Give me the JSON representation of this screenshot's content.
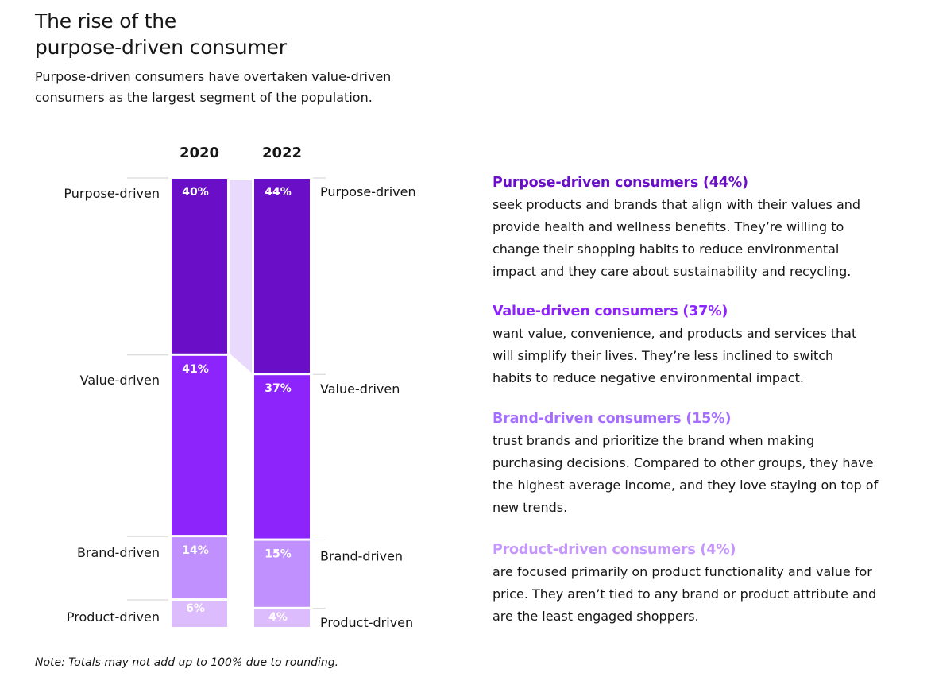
{
  "header": {
    "title_line1": "The rise of the",
    "title_line2": "purpose-driven consumer",
    "subtitle": "Purpose-driven consumers have overtaken value-driven consumers as the largest segment of the population."
  },
  "chart_data": {
    "type": "bar",
    "stacked": true,
    "orientation": "vertical",
    "categories": [
      "2020",
      "2022"
    ],
    "segments_order": "top-to-bottom",
    "series": [
      {
        "name": "Purpose-driven",
        "values": [
          40,
          44
        ],
        "labels": [
          "40%",
          "44%"
        ],
        "color": "#6a0fc7"
      },
      {
        "name": "Value-driven",
        "values": [
          41,
          37
        ],
        "labels": [
          "41%",
          "37%"
        ],
        "color": "#8c24fb"
      },
      {
        "name": "Brand-driven",
        "values": [
          14,
          15
        ],
        "labels": [
          "14%",
          "15%"
        ],
        "color": "#c090fe"
      },
      {
        "name": "Product-driven",
        "values": [
          6,
          4
        ],
        "labels": [
          "6%",
          "4%"
        ],
        "color": "#dcbcfd"
      }
    ],
    "left_labels": [
      "Purpose-driven",
      "Value-driven",
      "Brand-driven",
      "Product-driven"
    ],
    "right_labels": [
      "Purpose-driven",
      "Value-driven",
      "Brand-driven",
      "Product-driven"
    ],
    "connector": {
      "series": "Purpose-driven",
      "color": "#e8d9fd"
    },
    "unit": "%",
    "xlabel": "",
    "ylabel": "",
    "legend": "none",
    "grid": false
  },
  "descriptions": [
    {
      "title": "Purpose-driven consumers (44%)",
      "color": "#6a0fc7",
      "lines": [
        "seek products and brands that align with their values and",
        "provide health and wellness benefits. They’re willing to",
        "change their shopping habits to reduce environmental",
        "impact and they care about sustainability and recycling."
      ]
    },
    {
      "title": "Value-driven consumers (37%)",
      "color": "#8c24fb",
      "lines": [
        "want value, convenience, and products and services that",
        "will simplify their lives. They’re less inclined to switch",
        "habits to reduce negative environmental impact."
      ]
    },
    {
      "title": "Brand-driven consumers (15%)",
      "color": "#a56eff",
      "lines": [
        "trust brands and prioritize the brand when making",
        "purchasing decisions. Compared to other groups, they have",
        "the highest average income, and they love staying on top of",
        "new trends."
      ]
    },
    {
      "title": "Product-driven consumers (4%)",
      "color": "#c596fd",
      "lines": [
        "are focused primarily on product functionality and value for",
        "price. They aren’t tied to any brand or product attribute and",
        "are the least engaged shoppers."
      ]
    }
  ],
  "note": "Note: Totals may not add up to 100% due to rounding."
}
